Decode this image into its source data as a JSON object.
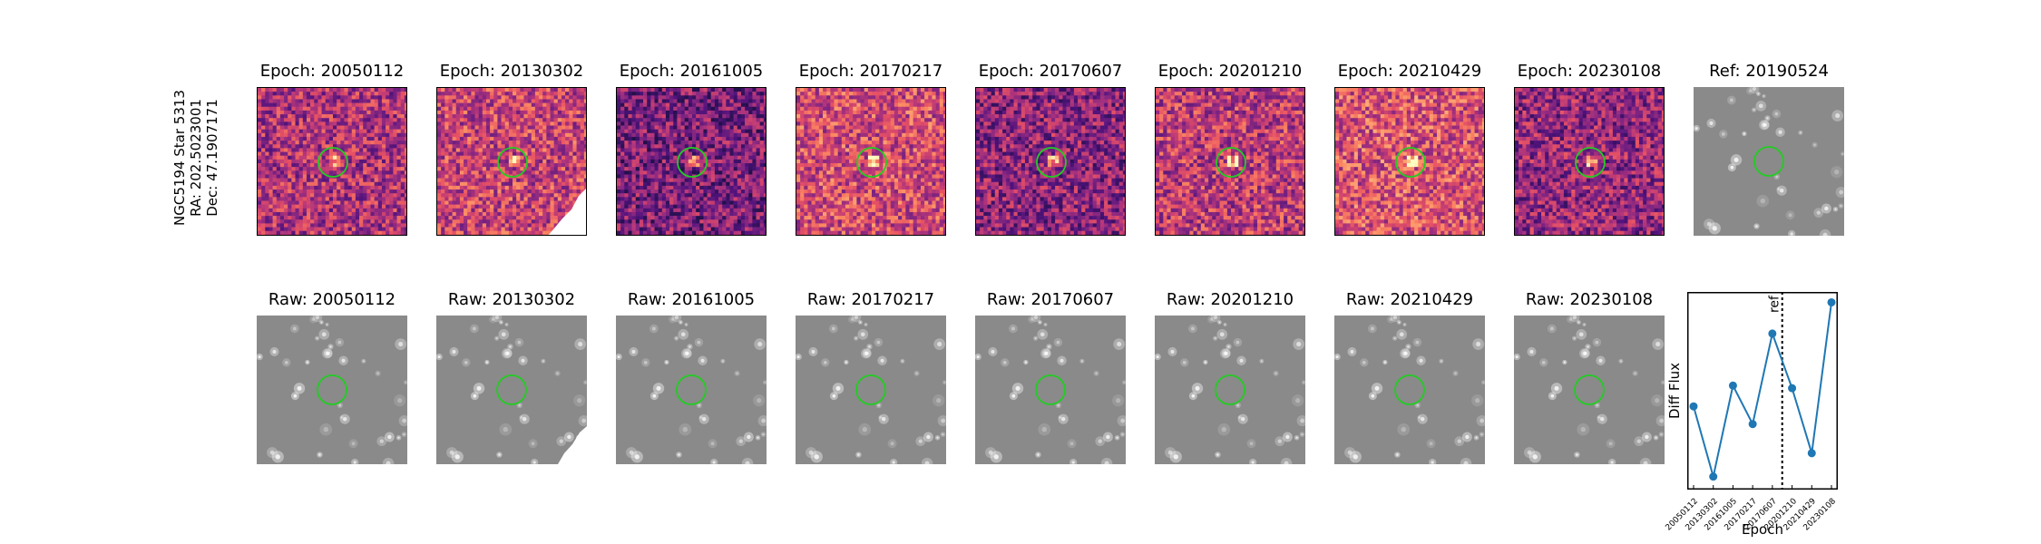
{
  "target": {
    "name": "NGC5194 Star 5313",
    "ra": "RA: 202.5023001",
    "dec": "Dec: 47.1907171"
  },
  "diff_titles": [
    "Epoch: 20050112",
    "Epoch: 20130302",
    "Epoch: 20161005",
    "Epoch: 20170217",
    "Epoch: 20170607",
    "Epoch: 20201210",
    "Epoch: 20210429",
    "Epoch: 20230108"
  ],
  "ref_title": "Ref: 20190524",
  "raw_titles": [
    "Raw: 20050112",
    "Raw: 20130302",
    "Raw: 20161005",
    "Raw: 20170217",
    "Raw: 20170607",
    "Raw: 20201210",
    "Raw: 20210429",
    "Raw: 20230108"
  ],
  "colors": {
    "circle": "#22cc22",
    "line": "#1f77b4",
    "raw_bg": "#8a8a8a"
  },
  "chart_data": {
    "type": "line",
    "x": [
      "20050112",
      "20130302",
      "20161005",
      "20170217",
      "20170607",
      "20201210",
      "20210429",
      "20230108"
    ],
    "series": [
      {
        "values": [
          0.4,
          -0.95,
          0.8,
          0.06,
          1.8,
          0.75,
          -0.5,
          2.4
        ]
      }
    ],
    "xlabel": "Epoch",
    "ylabel": "Diff Flux",
    "ylim": [
      -1.2,
      2.6
    ],
    "ref_line_label": "ref",
    "ref_line_between": [
      4,
      5
    ],
    "grid": false,
    "ytick_labels": false
  }
}
